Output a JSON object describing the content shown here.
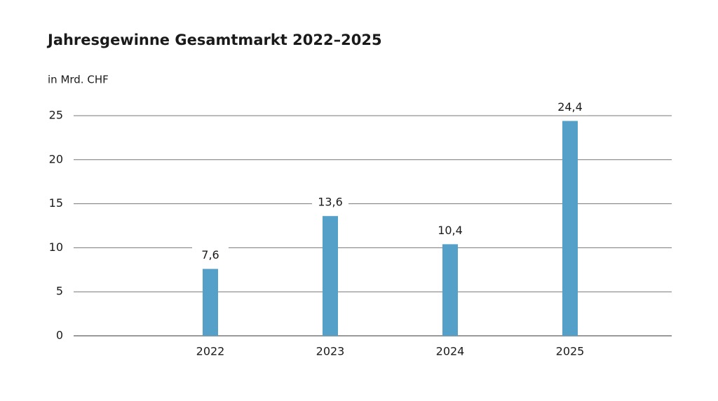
{
  "chart_data": {
    "type": "bar",
    "title": "Jahresgewinne Gesamtmarkt 2022–2025",
    "subtitle": "in Mrd. CHF",
    "categories": [
      "2022",
      "2023",
      "2024",
      "2025"
    ],
    "values": [
      7.6,
      13.6,
      10.4,
      24.4
    ],
    "value_labels": [
      "7,6",
      "13,6",
      "10,4",
      "24,4"
    ],
    "color": "#55a0c8",
    "ylim": [
      0,
      25
    ],
    "yticks": [
      0,
      5,
      10,
      15,
      20,
      25
    ],
    "grid": true
  }
}
